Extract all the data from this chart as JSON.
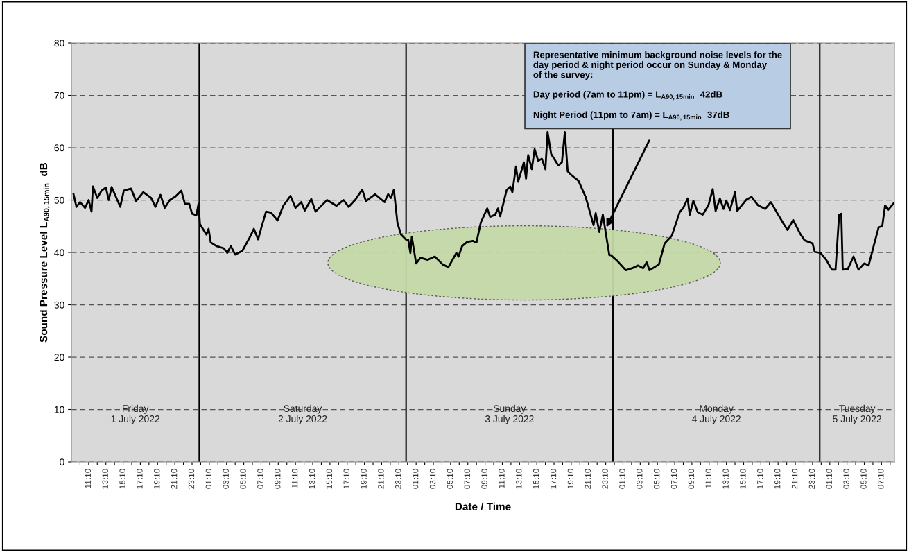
{
  "chart_data": {
    "type": "line",
    "xlabel": "Date / Time",
    "ylabel": "Sound Pressure Level L$_{A90,15min}$ dB",
    "x": [
      "2022-07-01T09:25",
      "2022-07-01T09:45",
      "2022-07-01T10:10",
      "2022-07-01T10:45",
      "2022-07-01T11:10",
      "2022-07-01T11:30",
      "2022-07-01T11:40",
      "2022-07-01T12:10",
      "2022-07-01T12:40",
      "2022-07-01T13:10",
      "2022-07-01T13:30",
      "2022-07-01T13:50",
      "2022-07-01T14:50",
      "2022-07-01T15:15",
      "2022-07-01T16:05",
      "2022-07-01T16:40",
      "2022-07-01T17:30",
      "2022-07-01T18:25",
      "2022-07-01T18:55",
      "2022-07-01T19:30",
      "2022-07-01T20:00",
      "2022-07-01T20:35",
      "2022-07-01T21:15",
      "2022-07-01T21:55",
      "2022-07-01T22:20",
      "2022-07-01T22:50",
      "2022-07-01T23:10",
      "2022-07-01T23:40",
      "2022-07-01T23:55",
      "2022-07-02T00:05",
      "2022-07-02T00:50",
      "2022-07-02T01:05",
      "2022-07-02T01:20",
      "2022-07-02T02:00",
      "2022-07-02T02:50",
      "2022-07-02T03:15",
      "2022-07-02T03:40",
      "2022-07-02T04:10",
      "2022-07-02T05:00",
      "2022-07-02T05:50",
      "2022-07-02T06:20",
      "2022-07-02T06:50",
      "2022-07-02T07:15",
      "2022-07-02T07:45",
      "2022-07-02T08:20",
      "2022-07-02T09:05",
      "2022-07-02T09:45",
      "2022-07-02T10:35",
      "2022-07-02T11:10",
      "2022-07-02T11:50",
      "2022-07-02T12:15",
      "2022-07-02T13:00",
      "2022-07-02T13:30",
      "2022-07-02T14:50",
      "2022-07-02T15:55",
      "2022-07-02T16:45",
      "2022-07-02T17:20",
      "2022-07-02T18:05",
      "2022-07-02T18:55",
      "2022-07-02T19:20",
      "2022-07-02T20:25",
      "2022-07-02T21:30",
      "2022-07-02T21:55",
      "2022-07-02T22:15",
      "2022-07-02T22:35",
      "2022-07-02T23:00",
      "2022-07-02T23:25",
      "2022-07-03T00:05",
      "2022-07-03T00:15",
      "2022-07-03T00:30",
      "2022-07-03T00:40",
      "2022-07-03T01:10",
      "2022-07-03T01:40",
      "2022-07-03T02:30",
      "2022-07-03T03:20",
      "2022-07-03T04:15",
      "2022-07-03T04:55",
      "2022-07-03T05:50",
      "2022-07-03T06:05",
      "2022-07-03T06:30",
      "2022-07-03T07:05",
      "2022-07-03T07:45",
      "2022-07-03T08:10",
      "2022-07-03T08:40",
      "2022-07-03T09:25",
      "2022-07-03T09:45",
      "2022-07-03T10:20",
      "2022-07-03T10:40",
      "2022-07-03T10:55",
      "2022-07-03T11:40",
      "2022-07-03T12:05",
      "2022-07-03T12:20",
      "2022-07-03T12:45",
      "2022-07-03T13:00",
      "2022-07-03T13:40",
      "2022-07-03T13:55",
      "2022-07-03T14:10",
      "2022-07-03T14:35",
      "2022-07-03T14:55",
      "2022-07-03T15:20",
      "2022-07-03T15:45",
      "2022-07-03T16:10",
      "2022-07-03T16:25",
      "2022-07-03T16:50",
      "2022-07-03T17:40",
      "2022-07-03T18:05",
      "2022-07-03T18:25",
      "2022-07-03T18:45",
      "2022-07-03T19:10",
      "2022-07-03T20:00",
      "2022-07-03T20:50",
      "2022-07-03T21:45",
      "2022-07-03T22:00",
      "2022-07-03T22:25",
      "2022-07-03T22:50",
      "2022-07-03T23:35",
      "2022-07-03T23:45",
      "2022-07-04T00:30",
      "2022-07-04T01:30",
      "2022-07-04T02:15",
      "2022-07-04T02:55",
      "2022-07-04T03:30",
      "2022-07-04T03:55",
      "2022-07-04T04:15",
      "2022-07-04T05:20",
      "2022-07-04T06:00",
      "2022-07-04T06:50",
      "2022-07-04T07:45",
      "2022-07-04T08:10",
      "2022-07-04T08:40",
      "2022-07-04T08:55",
      "2022-07-04T09:20",
      "2022-07-04T09:50",
      "2022-07-04T10:25",
      "2022-07-04T11:05",
      "2022-07-04T11:35",
      "2022-07-04T11:55",
      "2022-07-04T12:25",
      "2022-07-04T12:50",
      "2022-07-04T13:10",
      "2022-07-04T13:35",
      "2022-07-04T14:10",
      "2022-07-04T14:25",
      "2022-07-04T15:30",
      "2022-07-04T16:05",
      "2022-07-04T16:50",
      "2022-07-04T17:40",
      "2022-07-04T18:20",
      "2022-07-04T19:15",
      "2022-07-04T19:50",
      "2022-07-04T20:15",
      "2022-07-04T20:55",
      "2022-07-04T21:45",
      "2022-07-04T22:15",
      "2022-07-04T23:10",
      "2022-07-04T23:25",
      "2022-07-05T00:05",
      "2022-07-05T00:45",
      "2022-07-05T01:25",
      "2022-07-05T01:50",
      "2022-07-05T02:15",
      "2022-07-05T02:30",
      "2022-07-05T02:40",
      "2022-07-05T03:15",
      "2022-07-05T03:55",
      "2022-07-05T04:30",
      "2022-07-05T05:10",
      "2022-07-05T05:40",
      "2022-07-05T06:20",
      "2022-07-05T06:50",
      "2022-07-05T07:15",
      "2022-07-05T07:35",
      "2022-07-05T07:55",
      "2022-07-05T08:35"
    ],
    "series": [
      {
        "color": "#000000",
        "values": [
          51.1,
          48.7,
          49.6,
          48.5,
          50,
          47.8,
          52.6,
          50.4,
          51.8,
          52.4,
          50,
          52.5,
          48.7,
          51.8,
          52.2,
          49.8,
          51.5,
          50.4,
          48.7,
          51,
          48.5,
          50,
          50.7,
          51.8,
          49.3,
          49.3,
          47.4,
          47.1,
          49.3,
          45.4,
          43.4,
          44.5,
          41.9,
          41.2,
          40.8,
          39.9,
          41.2,
          39.6,
          40.3,
          42.8,
          44.5,
          42.5,
          45,
          47.8,
          47.6,
          46.1,
          48.9,
          50.8,
          48.5,
          49.6,
          48,
          50.2,
          47.8,
          50,
          48.9,
          50,
          48.7,
          50,
          52,
          49.8,
          51.1,
          49.6,
          51.1,
          50.4,
          52,
          45.6,
          43.4,
          42.3,
          42.4,
          39.9,
          43,
          37.9,
          39,
          38.6,
          39.2,
          37.7,
          37.2,
          39.9,
          39.2,
          41.2,
          42,
          42.2,
          41.9,
          45.7,
          48.4,
          46.8,
          47.2,
          48.4,
          46.9,
          51.9,
          52.6,
          51.5,
          56.4,
          53.5,
          57.2,
          54.1,
          58.6,
          55.9,
          59.7,
          57.5,
          57.9,
          55.9,
          63,
          58.8,
          56.6,
          57.2,
          63,
          55.5,
          54.8,
          53.7,
          50.6,
          45.2,
          47.5,
          43.9,
          47.2,
          39.5,
          39.5,
          38.4,
          36.6,
          37,
          37.5,
          37,
          38.1,
          36.6,
          37.7,
          41.7,
          43.2,
          47.7,
          48.5,
          50.3,
          47.2,
          49.9,
          47.7,
          47.2,
          49,
          52.1,
          47.9,
          50.3,
          48.3,
          49.9,
          48.1,
          51.5,
          47.9,
          50.1,
          50.6,
          49,
          48.3,
          49.6,
          47,
          45.4,
          44.3,
          46.2,
          43.5,
          42.3,
          41.7,
          40.1,
          39.9,
          38.6,
          36.7,
          36.7,
          47.2,
          47.4,
          36.7,
          36.8,
          39.2,
          36.7,
          37.9,
          37.5,
          41.7,
          44.8,
          45,
          49,
          48.1,
          49.4
        ]
      }
    ],
    "xlim": [
      "2022-07-01T09:10",
      "2022-07-05T08:40"
    ],
    "xticks": [
      {
        "value": "2022-07-01T10:10",
        "label": null
      },
      {
        "value": "2022-07-01T11:10",
        "label": "11:10"
      },
      {
        "value": "2022-07-01T12:10",
        "label": null
      },
      {
        "value": "2022-07-01T13:10",
        "label": "13:10"
      },
      {
        "value": "2022-07-01T14:10",
        "label": null
      },
      {
        "value": "2022-07-01T15:10",
        "label": "15:10"
      },
      {
        "value": "2022-07-01T16:10",
        "label": null
      },
      {
        "value": "2022-07-01T17:10",
        "label": "17:10"
      },
      {
        "value": "2022-07-01T18:10",
        "label": null
      },
      {
        "value": "2022-07-01T19:10",
        "label": "19:10"
      },
      {
        "value": "2022-07-01T20:10",
        "label": null
      },
      {
        "value": "2022-07-01T21:10",
        "label": "21:10"
      },
      {
        "value": "2022-07-01T22:10",
        "label": null
      },
      {
        "value": "2022-07-01T23:10",
        "label": "23:10"
      },
      {
        "value": "2022-07-02T00:10",
        "label": null
      },
      {
        "value": "2022-07-02T01:10",
        "label": "01:10"
      },
      {
        "value": "2022-07-02T02:10",
        "label": null
      },
      {
        "value": "2022-07-02T03:10",
        "label": "03:10"
      },
      {
        "value": "2022-07-02T04:10",
        "label": null
      },
      {
        "value": "2022-07-02T05:10",
        "label": "05:10"
      },
      {
        "value": "2022-07-02T06:10",
        "label": null
      },
      {
        "value": "2022-07-02T07:10",
        "label": "07:10"
      },
      {
        "value": "2022-07-02T08:10",
        "label": null
      },
      {
        "value": "2022-07-02T09:10",
        "label": "09:10"
      },
      {
        "value": "2022-07-02T10:10",
        "label": null
      },
      {
        "value": "2022-07-02T11:10",
        "label": "11:10"
      },
      {
        "value": "2022-07-02T12:10",
        "label": null
      },
      {
        "value": "2022-07-02T13:10",
        "label": "13:10"
      },
      {
        "value": "2022-07-02T14:10",
        "label": null
      },
      {
        "value": "2022-07-02T15:10",
        "label": "15:10"
      },
      {
        "value": "2022-07-02T16:10",
        "label": null
      },
      {
        "value": "2022-07-02T17:10",
        "label": "17:10"
      },
      {
        "value": "2022-07-02T18:10",
        "label": null
      },
      {
        "value": "2022-07-02T19:10",
        "label": "19:10"
      },
      {
        "value": "2022-07-02T20:10",
        "label": null
      },
      {
        "value": "2022-07-02T21:10",
        "label": "21:10"
      },
      {
        "value": "2022-07-02T22:10",
        "label": null
      },
      {
        "value": "2022-07-02T23:10",
        "label": "23:10"
      },
      {
        "value": "2022-07-03T00:10",
        "label": null
      },
      {
        "value": "2022-07-03T01:10",
        "label": "01:10"
      },
      {
        "value": "2022-07-03T02:10",
        "label": null
      },
      {
        "value": "2022-07-03T03:10",
        "label": "03:10"
      },
      {
        "value": "2022-07-03T04:10",
        "label": null
      },
      {
        "value": "2022-07-03T05:10",
        "label": "05:10"
      },
      {
        "value": "2022-07-03T06:10",
        "label": null
      },
      {
        "value": "2022-07-03T07:10",
        "label": "07:10"
      },
      {
        "value": "2022-07-03T08:10",
        "label": null
      },
      {
        "value": "2022-07-03T09:10",
        "label": "09:10"
      },
      {
        "value": "2022-07-03T10:10",
        "label": null
      },
      {
        "value": "2022-07-03T11:10",
        "label": "11:10"
      },
      {
        "value": "2022-07-03T12:10",
        "label": null
      },
      {
        "value": "2022-07-03T13:10",
        "label": "13:10"
      },
      {
        "value": "2022-07-03T14:10",
        "label": null
      },
      {
        "value": "2022-07-03T15:10",
        "label": "15:10"
      },
      {
        "value": "2022-07-03T16:10",
        "label": null
      },
      {
        "value": "2022-07-03T17:10",
        "label": "17:10"
      },
      {
        "value": "2022-07-03T18:10",
        "label": null
      },
      {
        "value": "2022-07-03T19:10",
        "label": "19:10"
      },
      {
        "value": "2022-07-03T20:10",
        "label": null
      },
      {
        "value": "2022-07-03T21:10",
        "label": "21:10"
      },
      {
        "value": "2022-07-03T22:10",
        "label": null
      },
      {
        "value": "2022-07-03T23:10",
        "label": "23:10"
      },
      {
        "value": "2022-07-04T00:10",
        "label": null
      },
      {
        "value": "2022-07-04T01:10",
        "label": "01:10"
      },
      {
        "value": "2022-07-04T02:10",
        "label": null
      },
      {
        "value": "2022-07-04T03:10",
        "label": "03:10"
      },
      {
        "value": "2022-07-04T04:10",
        "label": null
      },
      {
        "value": "2022-07-04T05:10",
        "label": "05:10"
      },
      {
        "value": "2022-07-04T06:10",
        "label": null
      },
      {
        "value": "2022-07-04T07:10",
        "label": "07:10"
      },
      {
        "value": "2022-07-04T08:10",
        "label": null
      },
      {
        "value": "2022-07-04T09:10",
        "label": "09:10"
      },
      {
        "value": "2022-07-04T10:10",
        "label": null
      },
      {
        "value": "2022-07-04T11:10",
        "label": "11:10"
      },
      {
        "value": "2022-07-04T12:10",
        "label": null
      },
      {
        "value": "2022-07-04T13:10",
        "label": "13:10"
      },
      {
        "value": "2022-07-04T14:10",
        "label": null
      },
      {
        "value": "2022-07-04T15:10",
        "label": "15:10"
      },
      {
        "value": "2022-07-04T16:10",
        "label": null
      },
      {
        "value": "2022-07-04T17:10",
        "label": "17:10"
      },
      {
        "value": "2022-07-04T18:10",
        "label": null
      },
      {
        "value": "2022-07-04T19:10",
        "label": "19:10"
      },
      {
        "value": "2022-07-04T20:10",
        "label": null
      },
      {
        "value": "2022-07-04T21:10",
        "label": "21:10"
      },
      {
        "value": "2022-07-04T22:10",
        "label": null
      },
      {
        "value": "2022-07-04T23:10",
        "label": "23:10"
      },
      {
        "value": "2022-07-05T00:10",
        "label": null
      },
      {
        "value": "2022-07-05T01:10",
        "label": "01:10"
      },
      {
        "value": "2022-07-05T02:10",
        "label": null
      },
      {
        "value": "2022-07-05T03:10",
        "label": "03:10"
      },
      {
        "value": "2022-07-05T04:10",
        "label": null
      },
      {
        "value": "2022-07-05T05:10",
        "label": "05:10"
      },
      {
        "value": "2022-07-05T06:10",
        "label": null
      },
      {
        "value": "2022-07-05T07:10",
        "label": "07:10"
      },
      {
        "value": "2022-07-05T08:10",
        "label": null
      }
    ],
    "ylim": [
      0,
      80
    ],
    "yticks": [
      0,
      10,
      20,
      30,
      40,
      50,
      60,
      70,
      80
    ],
    "grid": "y",
    "line_style": "solid",
    "marker": "none",
    "ref_lines": [
      {
        "axis": "x",
        "value": "2022-07-02T00:00",
        "color": "#000000"
      },
      {
        "axis": "x",
        "value": "2022-07-03T00:00",
        "color": "#000000"
      },
      {
        "axis": "x",
        "value": "2022-07-04T00:00",
        "color": "#000000"
      },
      {
        "axis": "x",
        "value": "2022-07-05T00:00",
        "color": "#000000"
      }
    ],
    "annotations": [
      "Friday\n1 July 2022",
      "Saturday\n2 July 2022",
      "Sunday\n3 July 2022",
      "Monday\n4 July 2022",
      "Tuesday\n5 July 2022",
      "Representative minimum background noise levels for the\nday period & night period occur on Sunday & Monday\nof the survey:\n\nDay period (7am to 11pm) = L$_{A90,15min}$ 42dB\n\nNight Period (11pm to 7am) = L$_{A90,15min}$ 37dB"
    ]
  }
}
